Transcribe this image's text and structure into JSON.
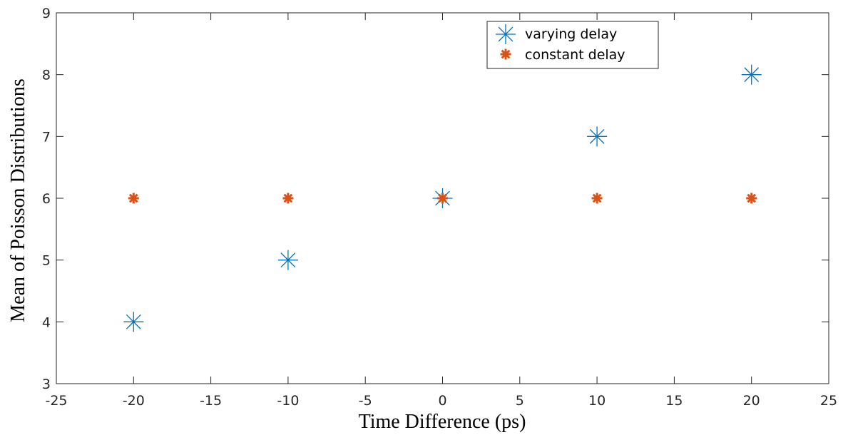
{
  "chart_data": {
    "type": "scatter",
    "title": "",
    "xlabel": "Time Difference (ps)",
    "ylabel": "Mean of Poisson Distributions",
    "xlim": [
      -25,
      25
    ],
    "ylim": [
      3,
      9
    ],
    "xticks": [
      -25,
      -20,
      -15,
      -10,
      -5,
      0,
      5,
      10,
      15,
      20,
      25
    ],
    "yticks": [
      3,
      4,
      5,
      6,
      7,
      8,
      9
    ],
    "grid": false,
    "legend_position": "top-right",
    "series": [
      {
        "name": "varying delay",
        "color": "#0072BD",
        "marker": "asterisk-large",
        "points": [
          {
            "x": -20,
            "y": 4
          },
          {
            "x": -10,
            "y": 5
          },
          {
            "x": 0,
            "y": 6
          },
          {
            "x": 10,
            "y": 7
          },
          {
            "x": 20,
            "y": 8
          }
        ]
      },
      {
        "name": "constant delay",
        "color": "#D95319",
        "marker": "asterisk-small",
        "points": [
          {
            "x": -20,
            "y": 6
          },
          {
            "x": -10,
            "y": 6
          },
          {
            "x": 0,
            "y": 6
          },
          {
            "x": 10,
            "y": 6
          },
          {
            "x": 20,
            "y": 6
          }
        ]
      }
    ]
  }
}
